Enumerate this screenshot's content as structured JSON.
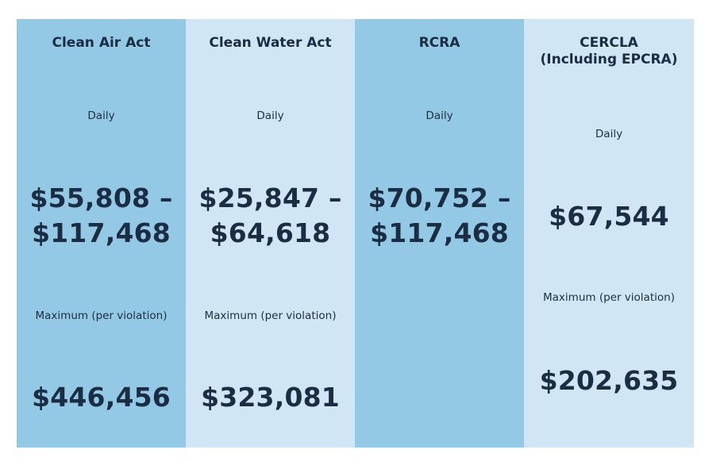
{
  "columns": [
    {
      "title": "Clean Air Act",
      "daily_label": "Daily",
      "daily_line1": "$55,808 –",
      "daily_line2": "$117,468",
      "max_label": "Maximum (per violation)",
      "max_value": "$446,456"
    },
    {
      "title": "Clean Water Act",
      "daily_label": "Daily",
      "daily_line1": "$25,847 –",
      "daily_line2": "$64,618",
      "max_label": "Maximum (per violation)",
      "max_value": "$323,081"
    },
    {
      "title": "RCRA",
      "daily_label": "Daily",
      "daily_line1": "$70,752 –",
      "daily_line2": "$117,468"
    },
    {
      "title_line1": "CERCLA",
      "title_line2": "(Including EPCRA)",
      "daily_label": "Daily",
      "daily_value": "$67,544",
      "max_label": "Maximum (per violation)",
      "max_value": "$202,635"
    }
  ],
  "colors": {
    "dark_column": "#94c9e6",
    "light_column": "#d0e6f4",
    "text": "#1b2d43"
  }
}
